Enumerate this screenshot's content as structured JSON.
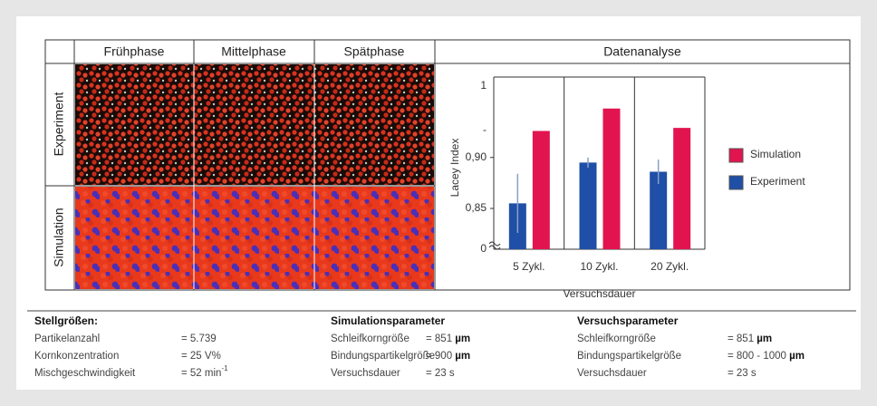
{
  "table": {
    "columns": [
      "Frühphase",
      "Mittelphase",
      "Spätphase",
      "Datenanalyse"
    ],
    "rows": [
      "Experiment",
      "Simulation"
    ]
  },
  "chart_data": {
    "type": "bar",
    "y_label": "Lacey Index",
    "x_label": "Versuchsdauer",
    "categories": [
      "5 Zykl.",
      "10 Zykl.",
      "20 Zykl."
    ],
    "series": [
      {
        "name": "Simulation",
        "color": "#e2144f",
        "values": [
          0.926,
          0.948,
          0.929
        ]
      },
      {
        "name": "Experiment",
        "color": "#1f4fa6",
        "values": [
          0.855,
          0.895,
          0.886
        ],
        "errors": [
          0.029,
          0.005,
          0.012
        ]
      }
    ],
    "ylim": [
      0.81,
      0.97
    ],
    "yticks": [
      {
        "value": 0.85,
        "label": "0,85"
      },
      {
        "value": 0.9,
        "label": "0,90"
      }
    ],
    "axis_break_labels": [
      "1",
      "-",
      "0"
    ]
  },
  "parameters": [
    {
      "title": "Stellgrößen:",
      "rows": [
        {
          "name": "Partikelanzahl",
          "value": "= 5.739"
        },
        {
          "name": "Kornkonzentration",
          "value": "= 25 V%"
        },
        {
          "name": "Mischgeschwindigkeit",
          "value": "= 52 min",
          "sup": "-1"
        }
      ]
    },
    {
      "title": "Simulationsparameter",
      "rows": [
        {
          "name": "Schleifkorngröße",
          "value": "= 851 ",
          "unit": "µm"
        },
        {
          "name": "Bindungspartikelgröße",
          "value": "= 900 ",
          "unit": "µm"
        },
        {
          "name": "Versuchsdauer",
          "value": "= 23 s"
        }
      ]
    },
    {
      "title": "Versuchsparameter",
      "rows": [
        {
          "name": "Schleifkorngröße",
          "value": "= 851 ",
          "unit": "µm"
        },
        {
          "name": "Bindungspartikelgröße",
          "value": "= 800 - 1000 ",
          "unit": "µm"
        },
        {
          "name": "Versuchsdauer",
          "value": "= 23 s"
        }
      ]
    }
  ]
}
